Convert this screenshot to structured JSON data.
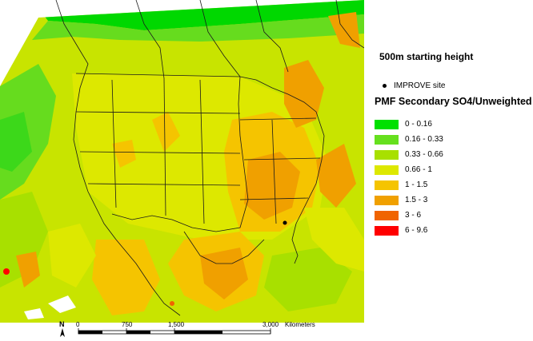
{
  "legend": {
    "title": "500m starting height",
    "site_label": "IMPROVE site",
    "heading": "PMF Secondary SO4/Unweighted",
    "classes": [
      {
        "label": "0 - 0.16",
        "color": "#00e000"
      },
      {
        "label": "0.16 - 0.33",
        "color": "#66e01e"
      },
      {
        "label": "0.33 - 0.66",
        "color": "#a8e000"
      },
      {
        "label": "0.66 - 1",
        "color": "#dde800"
      },
      {
        "label": "1 - 1.5",
        "color": "#f5c400"
      },
      {
        "label": "1.5 - 3",
        "color": "#f0a000"
      },
      {
        "label": "3 - 6",
        "color": "#f06400"
      },
      {
        "label": "6 - 9.6",
        "color": "#ff0000"
      }
    ]
  },
  "scale": {
    "ticks": [
      "0",
      "750",
      "1,500",
      "3,000"
    ],
    "unit": "Kilometers",
    "north_label": "N"
  }
}
